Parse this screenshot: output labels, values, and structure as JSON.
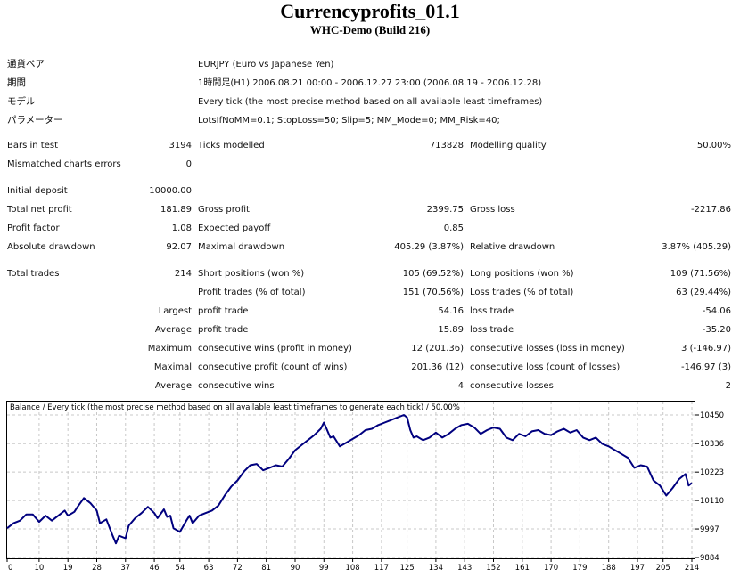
{
  "header": {
    "title": "Currencyprofits_01.1",
    "subtitle": "WHC-Demo (Build 216)"
  },
  "info": [
    {
      "label": "通貨ペア",
      "value": "EURJPY (Euro vs Japanese Yen)"
    },
    {
      "label": "期間",
      "value": "1時間足(H1) 2006.08.21 00:00 - 2006.12.27 23:00 (2006.08.19 - 2006.12.28)"
    },
    {
      "label": "モデル",
      "value": "Every tick (the most precise method based on all available least timeframes)"
    },
    {
      "label": "パラメーター",
      "value": "LotsIfNoMM=0.1; StopLoss=50; Slip=5; MM_Mode=0; MM_Risk=40;"
    }
  ],
  "stats": {
    "bars_in_test": {
      "label": "Bars in test",
      "value": "3194"
    },
    "ticks_modelled": {
      "label": "Ticks modelled",
      "value": "713828"
    },
    "modelling_quality": {
      "label": "Modelling quality",
      "value": "50.00%"
    },
    "mismatched": {
      "label": "Mismatched charts errors",
      "value": "0"
    },
    "initial_deposit": {
      "label": "Initial deposit",
      "value": "10000.00"
    },
    "total_net_profit": {
      "label": "Total net profit",
      "value": "181.89"
    },
    "gross_profit": {
      "label": "Gross profit",
      "value": "2399.75"
    },
    "gross_loss": {
      "label": "Gross loss",
      "value": "-2217.86"
    },
    "profit_factor": {
      "label": "Profit factor",
      "value": "1.08"
    },
    "expected_payoff": {
      "label": "Expected payoff",
      "value": "0.85"
    },
    "absolute_drawdown": {
      "label": "Absolute drawdown",
      "value": "92.07"
    },
    "maximal_drawdown": {
      "label": "Maximal drawdown",
      "value": "405.29 (3.87%)"
    },
    "relative_drawdown": {
      "label": "Relative drawdown",
      "value": "3.87% (405.29)"
    },
    "total_trades": {
      "label": "Total trades",
      "value": "214"
    },
    "short_positions": {
      "label": "Short positions (won %)",
      "value": "105 (69.52%)"
    },
    "long_positions": {
      "label": "Long positions (won %)",
      "value": "109 (71.56%)"
    },
    "profit_trades": {
      "label": "Profit trades (% of total)",
      "value": "151 (70.56%)"
    },
    "loss_trades": {
      "label": "Loss trades (% of total)",
      "value": "63 (29.44%)"
    },
    "largest": {
      "prefix": "Largest",
      "profit_label": "profit trade",
      "profit_value": "54.16",
      "loss_label": "loss trade",
      "loss_value": "-54.06"
    },
    "average": {
      "prefix": "Average",
      "profit_label": "profit trade",
      "profit_value": "15.89",
      "loss_label": "loss trade",
      "loss_value": "-35.20"
    },
    "maximum_consec": {
      "prefix": "Maximum",
      "wins_label": "consecutive wins (profit in money)",
      "wins_value": "12 (201.36)",
      "losses_label": "consecutive losses (loss in money)",
      "losses_value": "3 (-146.97)"
    },
    "maximal_consec": {
      "prefix": "Maximal",
      "wins_label": "consecutive profit (count of wins)",
      "wins_value": "201.36 (12)",
      "losses_label": "consecutive loss (count of losses)",
      "losses_value": "-146.97 (3)"
    },
    "average_consec": {
      "prefix": "Average",
      "wins_label": "consecutive wins",
      "wins_value": "4",
      "losses_label": "consecutive losses",
      "losses_value": "2"
    }
  },
  "chart_data": {
    "type": "line",
    "title": "Balance / Every tick (the most precise method based on all available least timeframes to generate each tick) / 50.00%",
    "xlabel": "",
    "ylabel": "",
    "x_ticks": [
      0,
      10,
      19,
      28,
      37,
      46,
      54,
      63,
      72,
      81,
      90,
      99,
      108,
      117,
      125,
      134,
      143,
      152,
      161,
      170,
      179,
      188,
      197,
      205,
      214
    ],
    "y_ticks": [
      9884,
      9997,
      10110,
      10223,
      10336,
      10450
    ],
    "xlim": [
      0,
      214
    ],
    "ylim": [
      9884,
      10450
    ],
    "grid": true,
    "line_color": "#00007f",
    "series": [
      {
        "name": "Balance",
        "x": [
          0,
          2,
          4,
          6,
          8,
          10,
          12,
          14,
          16,
          18,
          19,
          21,
          22,
          24,
          26,
          28,
          29,
          31,
          33,
          34,
          35,
          37,
          38,
          40,
          42,
          44,
          46,
          47,
          49,
          50,
          51,
          52,
          54,
          56,
          57,
          58,
          60,
          62,
          64,
          66,
          68,
          70,
          72,
          74,
          76,
          78,
          80,
          82,
          84,
          86,
          88,
          90,
          92,
          94,
          96,
          98,
          99,
          101,
          102,
          104,
          106,
          108,
          110,
          112,
          114,
          116,
          118,
          120,
          122,
          124,
          125,
          126,
          127,
          128,
          130,
          132,
          134,
          136,
          138,
          140,
          142,
          144,
          146,
          148,
          150,
          152,
          154,
          156,
          158,
          160,
          162,
          164,
          166,
          168,
          170,
          172,
          174,
          176,
          178,
          180,
          182,
          184,
          186,
          188,
          190,
          192,
          194,
          196,
          198,
          200,
          202,
          204,
          206,
          208,
          210,
          212,
          213,
          214
        ],
        "values": [
          10000,
          10020,
          10030,
          10055,
          10055,
          10025,
          10050,
          10030,
          10050,
          10070,
          10050,
          10065,
          10085,
          10120,
          10100,
          10070,
          10020,
          10035,
          9970,
          9940,
          9970,
          9960,
          10010,
          10040,
          10060,
          10085,
          10060,
          10040,
          10075,
          10045,
          10050,
          10000,
          9985,
          10030,
          10050,
          10020,
          10050,
          10060,
          10070,
          10090,
          10130,
          10165,
          10190,
          10225,
          10250,
          10255,
          10230,
          10240,
          10250,
          10245,
          10275,
          10310,
          10330,
          10350,
          10370,
          10395,
          10420,
          10360,
          10365,
          10325,
          10340,
          10355,
          10370,
          10390,
          10395,
          10410,
          10420,
          10430,
          10440,
          10450,
          10440,
          10390,
          10360,
          10365,
          10350,
          10360,
          10380,
          10360,
          10375,
          10395,
          10410,
          10415,
          10400,
          10375,
          10390,
          10400,
          10395,
          10360,
          10350,
          10375,
          10365,
          10385,
          10390,
          10375,
          10370,
          10385,
          10395,
          10380,
          10390,
          10360,
          10350,
          10360,
          10335,
          10325,
          10310,
          10295,
          10280,
          10240,
          10250,
          10245,
          10190,
          10170,
          10130,
          10160,
          10195,
          10215,
          10170,
          10180
        ]
      }
    ]
  }
}
